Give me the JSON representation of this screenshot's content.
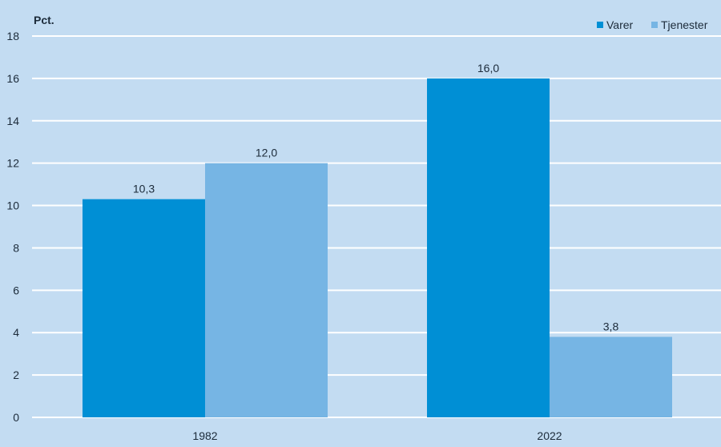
{
  "chart_data": {
    "type": "bar",
    "ylabel": "Pct.",
    "categories": [
      "1982",
      "2022"
    ],
    "series": [
      {
        "name": "Varer",
        "values": [
          10.3,
          16.0
        ],
        "labels": [
          "10,3",
          "16,0"
        ],
        "color": "#008fd5"
      },
      {
        "name": "Tjenester",
        "values": [
          12.0,
          3.8
        ],
        "labels": [
          "12,0",
          "3,8"
        ],
        "color": "#76b5e4"
      }
    ],
    "ylim": [
      0,
      18
    ],
    "yticks": [
      0,
      2,
      4,
      6,
      8,
      10,
      12,
      14,
      16,
      18
    ],
    "grid": true,
    "legend_position": "top-right",
    "background": "#c3dcf2",
    "grid_color": "#ffffff"
  }
}
